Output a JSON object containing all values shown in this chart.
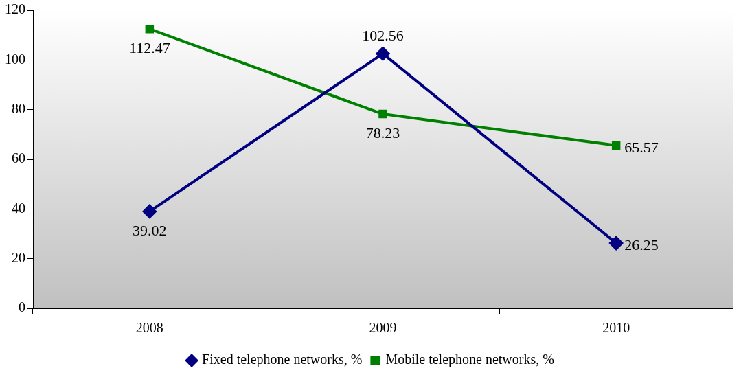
{
  "chart_data": {
    "type": "line",
    "categories": [
      "2008",
      "2009",
      "2010"
    ],
    "series": [
      {
        "name": "Fixed telephone networks, %",
        "color": "#000080",
        "marker": "diamond",
        "values": [
          39.02,
          102.56,
          26.25
        ]
      },
      {
        "name": "Mobile telephone networks, %",
        "color": "#008000",
        "marker": "square",
        "values": [
          112.47,
          78.23,
          65.57
        ]
      }
    ],
    "ylim": [
      0,
      120
    ],
    "yticks": [
      0,
      20,
      40,
      60,
      80,
      100,
      120
    ],
    "grid": false,
    "legend": "bottom",
    "data_labels": true
  }
}
